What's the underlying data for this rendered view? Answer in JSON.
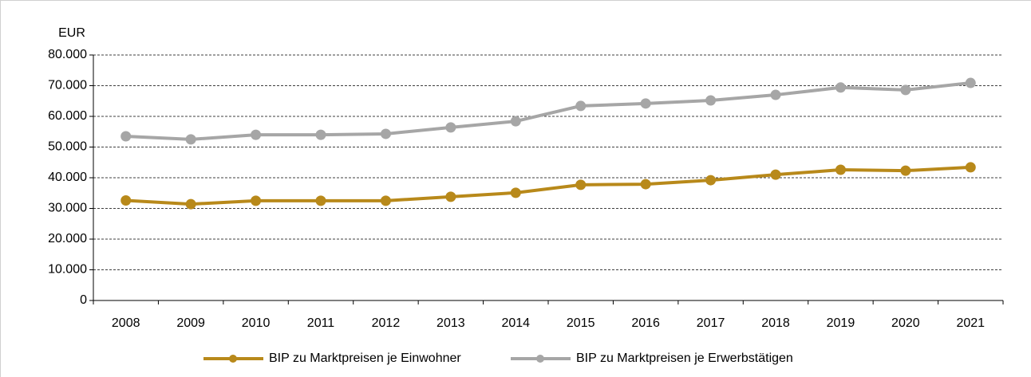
{
  "chart_data": {
    "type": "line",
    "y_label": "EUR",
    "categories": [
      "2008",
      "2009",
      "2010",
      "2011",
      "2012",
      "2013",
      "2014",
      "2015",
      "2016",
      "2017",
      "2018",
      "2019",
      "2020",
      "2021"
    ],
    "series": [
      {
        "name": "BIP zu Marktpreisen je Einwohner",
        "color": "#b8891a",
        "values": [
          32600,
          31400,
          32500,
          32500,
          32500,
          33800,
          35100,
          37700,
          37900,
          39200,
          41000,
          42600,
          42300,
          43400
        ]
      },
      {
        "name": "BIP zu Marktpreisen je Erwerbstätigen",
        "color": "#a6a6a6",
        "values": [
          53500,
          52500,
          54000,
          54000,
          54300,
          56400,
          58400,
          63400,
          64200,
          65200,
          67000,
          69400,
          68600,
          70900
        ]
      }
    ],
    "ylim": [
      0,
      80000
    ],
    "yticks": [
      0,
      {
        "value": 10000,
        "label": "10.000"
      },
      {
        "value": 20000,
        "label": "20.000"
      },
      {
        "value": 30000,
        "label": "30.000"
      },
      {
        "value": 40000,
        "label": "40.000"
      },
      {
        "value": 50000,
        "label": "50.000"
      },
      {
        "value": 60000,
        "label": "60.000"
      },
      {
        "value": 70000,
        "label": "70.000"
      },
      {
        "value": 80000,
        "label": "80.000"
      }
    ],
    "grid": true,
    "legend": "bottom"
  }
}
